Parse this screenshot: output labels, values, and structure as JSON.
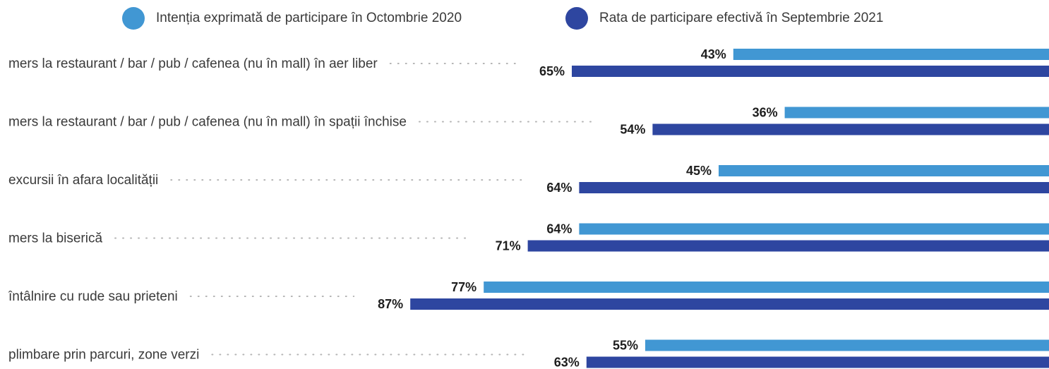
{
  "chart_data": {
    "type": "bar",
    "orientation": "horizontal",
    "legend_position": "top",
    "grid": false,
    "categories": [
      "mers la restaurant / bar / pub / cafenea (nu în mall) în aer liber",
      "mers la restaurant / bar / pub / cafenea (nu în mall) în spații închise",
      "excursii în afara localității",
      "mers la biserică",
      "întâlnire cu rude sau prieteni",
      "plimbare prin parcuri, zone verzi"
    ],
    "series": [
      {
        "name": "Intenția exprimată de participare în Octombrie 2020",
        "color": "#4197d3",
        "values": [
          43,
          36,
          45,
          64,
          77,
          55
        ],
        "labels": [
          "43%",
          "36%",
          "45%",
          "64%",
          "77%",
          "55%"
        ]
      },
      {
        "name": "Rata de participare efectivă în Septembrie 2021",
        "color": "#2e46a0",
        "values": [
          65,
          54,
          64,
          71,
          87,
          63
        ],
        "labels": [
          "65%",
          "54%",
          "64%",
          "71%",
          "87%",
          "63%"
        ]
      }
    ]
  }
}
